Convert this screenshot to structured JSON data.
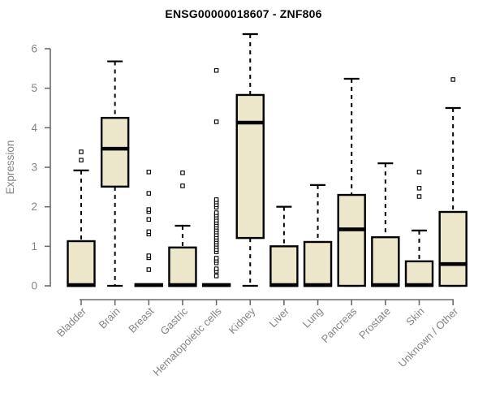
{
  "chart_data": {
    "type": "boxplot",
    "title": "ENSG00000018607 - ZNF806",
    "ylabel": "Expression",
    "xlabel": "",
    "ylim": [
      0,
      6.5
    ],
    "yticks": [
      0,
      1,
      2,
      3,
      4,
      5,
      6
    ],
    "grid": false,
    "legend": "none",
    "colors": {
      "box_fill": "#ece6cb",
      "box_stroke": "#000000",
      "axis_line": "#6b6b6b",
      "axis_text": "#848484",
      "title_text": "#000000",
      "background": "#ffffff"
    },
    "categories": [
      "Bladder",
      "Brain",
      "Breast",
      "Gastric",
      "Hematopoietic cells",
      "Kidney",
      "Liver",
      "Lung",
      "Pancreas",
      "Prostate",
      "Skin",
      "Unknown / Other"
    ],
    "series": [
      {
        "category": "Bladder",
        "q1": 0,
        "median": 0.02,
        "q3": 1.13,
        "whisker_low": 0,
        "whisker_high": 2.92,
        "outliers": [
          3.18,
          3.39
        ]
      },
      {
        "category": "Brain",
        "q1": 2.51,
        "median": 3.47,
        "q3": 4.25,
        "whisker_low": 0,
        "whisker_high": 5.68,
        "outliers": []
      },
      {
        "category": "Breast",
        "q1": 0,
        "median": 0.02,
        "q3": 0.04,
        "whisker_low": 0,
        "whisker_high": 0.04,
        "outliers": [
          0.41,
          0.71,
          0.76,
          1.31,
          1.37,
          1.68,
          1.88,
          1.93,
          2.34,
          2.88
        ]
      },
      {
        "category": "Gastric",
        "q1": 0,
        "median": 0.02,
        "q3": 0.97,
        "whisker_low": 0,
        "whisker_high": 1.52,
        "outliers": [
          2.53,
          2.86
        ]
      },
      {
        "category": "Hematopoietic cells",
        "q1": 0,
        "median": 0.02,
        "q3": 0.04,
        "whisker_low": 0,
        "whisker_high": 0.04,
        "outliers": [
          0.25,
          0.37,
          0.43,
          0.58,
          0.64,
          0.7,
          0.86,
          0.92,
          0.99,
          1.05,
          1.11,
          1.17,
          1.23,
          1.29,
          1.36,
          1.42,
          1.48,
          1.54,
          1.6,
          1.66,
          1.73,
          1.79,
          1.85,
          1.99,
          2.05,
          2.12,
          2.18,
          4.15,
          5.45
        ]
      },
      {
        "category": "Kidney",
        "q1": 1.21,
        "median": 4.13,
        "q3": 4.83,
        "whisker_low": 0,
        "whisker_high": 6.37,
        "outliers": []
      },
      {
        "category": "Liver",
        "q1": 0,
        "median": 0.02,
        "q3": 1.0,
        "whisker_low": 0,
        "whisker_high": 2.0,
        "outliers": []
      },
      {
        "category": "Lung",
        "q1": 0,
        "median": 0.02,
        "q3": 1.11,
        "whisker_low": 0,
        "whisker_high": 2.55,
        "outliers": []
      },
      {
        "category": "Pancreas",
        "q1": 0,
        "median": 1.43,
        "q3": 2.3,
        "whisker_low": 0,
        "whisker_high": 5.24,
        "outliers": []
      },
      {
        "category": "Prostate",
        "q1": 0,
        "median": 0.02,
        "q3": 1.23,
        "whisker_low": 0,
        "whisker_high": 3.1,
        "outliers": []
      },
      {
        "category": "Skin",
        "q1": 0,
        "median": 0.02,
        "q3": 0.62,
        "whisker_low": 0,
        "whisker_high": 1.4,
        "outliers": [
          2.26,
          2.47,
          2.88
        ]
      },
      {
        "category": "Unknown / Other",
        "q1": 0,
        "median": 0.55,
        "q3": 1.87,
        "whisker_low": 0,
        "whisker_high": 4.5,
        "outliers": [
          5.22
        ]
      }
    ]
  }
}
